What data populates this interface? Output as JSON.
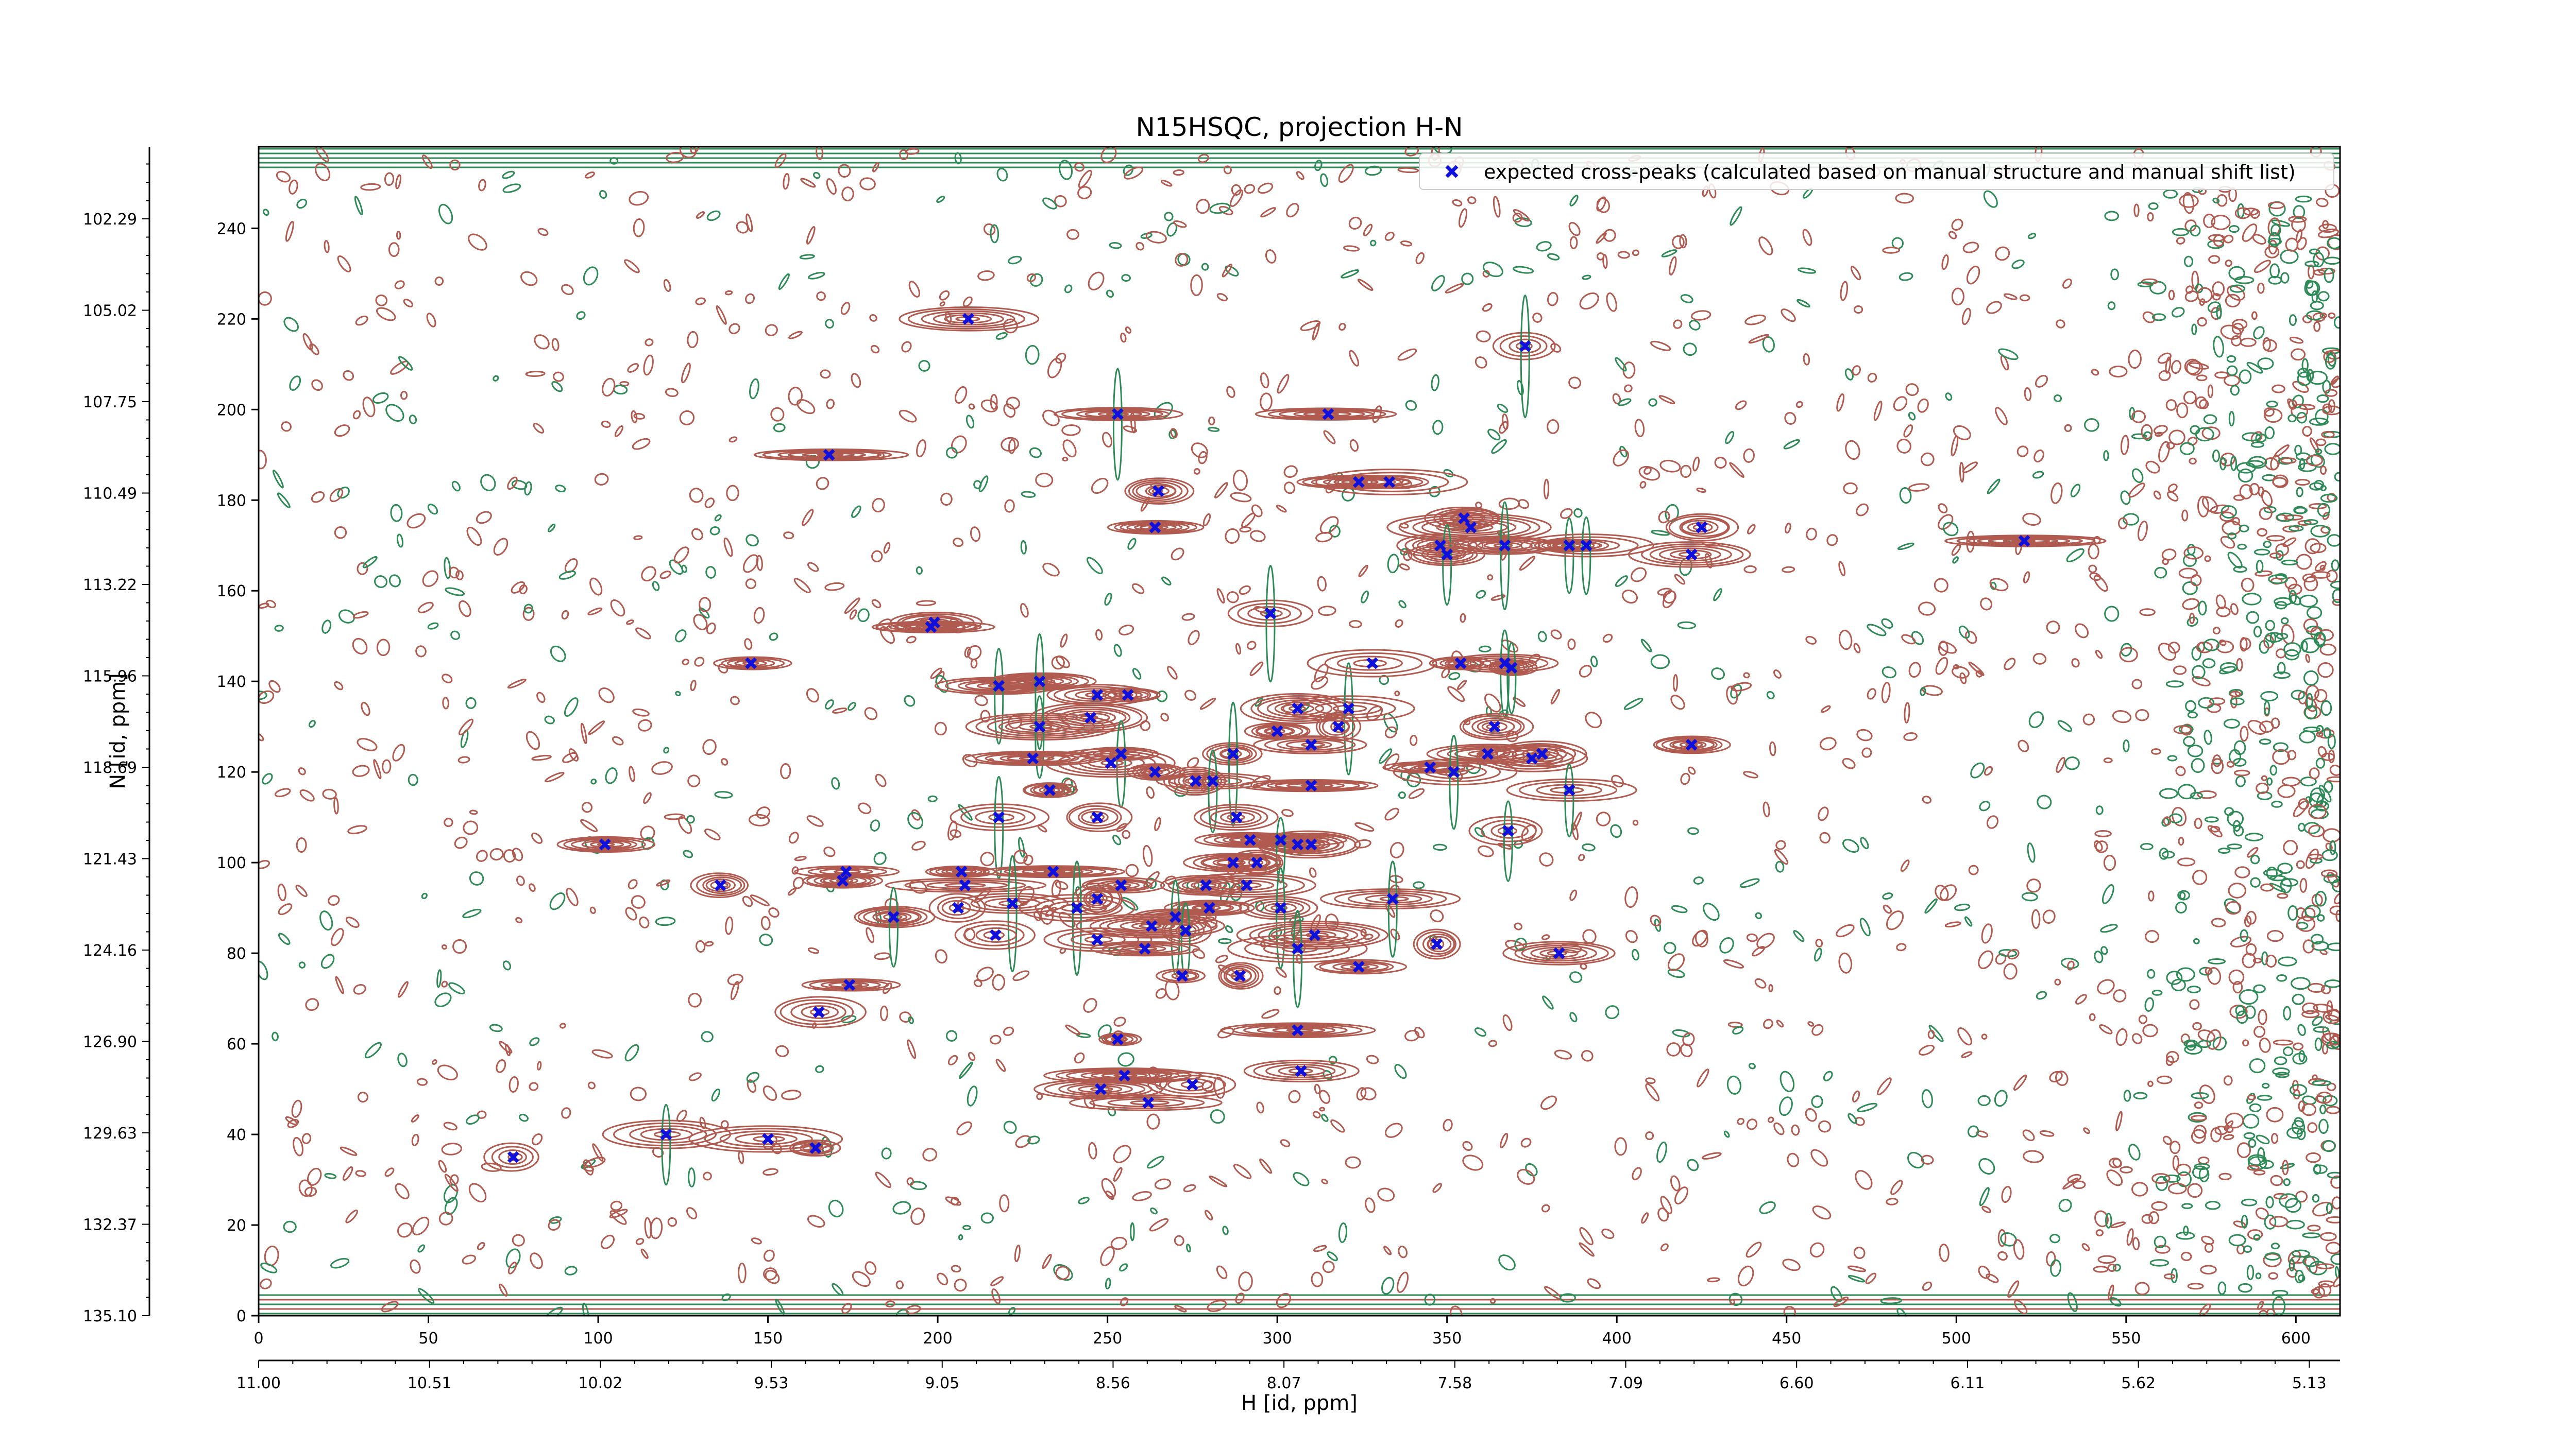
{
  "chart_data": {
    "type": "scatter",
    "title": "N15HSQC, projection H-N",
    "xlabel": "H [id, ppm]",
    "ylabel": "N [id, ppm]",
    "xlim": [
      0,
      613
    ],
    "ylim": [
      0,
      258
    ],
    "index_ticks": {
      "x": [
        "0",
        "50",
        "100",
        "150",
        "200",
        "250",
        "300",
        "350",
        "400",
        "450",
        "500",
        "550",
        "600"
      ],
      "y": [
        "0",
        "20",
        "40",
        "60",
        "80",
        "100",
        "120",
        "140",
        "160",
        "180",
        "200",
        "220",
        "240"
      ]
    },
    "ppm_ticks": {
      "x": [
        "11.00",
        "10.51",
        "10.02",
        "9.53",
        "9.05",
        "8.56",
        "8.07",
        "7.58",
        "7.09",
        "6.60",
        "6.11",
        "5.62",
        "5.13"
      ],
      "y": [
        "135.10",
        "132.37",
        "129.63",
        "126.90",
        "124.16",
        "121.43",
        "118.69",
        "115.96",
        "113.22",
        "110.49",
        "107.75",
        "105.02",
        "102.29"
      ]
    },
    "legend": {
      "placement": "top-right",
      "entries": [
        {
          "label": "expected cross-peaks (calculated based on manual structure and manual shift list)",
          "marker": "x",
          "color": "#1010dd"
        }
      ]
    },
    "background": "contour map (positive and negative contour levels)",
    "colors": {
      "positive_contour": "#b05a50",
      "negative_contour": "#2e8b57",
      "marker": "#1010dd"
    },
    "series": [
      {
        "name": "expected cross-peaks (calculated based on manual structure and manual shift list)",
        "points": [
          [
            209,
            220
          ],
          [
            373,
            214
          ],
          [
            253,
            199
          ],
          [
            315,
            199
          ],
          [
            168,
            190
          ],
          [
            265,
            182
          ],
          [
            324,
            184
          ],
          [
            333,
            184
          ],
          [
            264,
            174
          ],
          [
            355,
            176
          ],
          [
            357,
            174
          ],
          [
            425,
            174
          ],
          [
            348,
            170
          ],
          [
            350,
            168
          ],
          [
            367,
            170
          ],
          [
            386,
            170
          ],
          [
            391,
            170
          ],
          [
            422,
            168
          ],
          [
            520,
            171
          ],
          [
            198,
            152
          ],
          [
            199,
            153
          ],
          [
            298,
            155
          ],
          [
            145,
            144
          ],
          [
            218,
            139
          ],
          [
            230,
            140
          ],
          [
            247,
            137
          ],
          [
            256,
            137
          ],
          [
            306,
            134
          ],
          [
            321,
            134
          ],
          [
            328,
            144
          ],
          [
            354,
            144
          ],
          [
            367,
            144
          ],
          [
            369,
            143
          ],
          [
            245,
            132
          ],
          [
            318,
            130
          ],
          [
            300,
            129
          ],
          [
            230,
            130
          ],
          [
            254,
            124
          ],
          [
            228,
            123
          ],
          [
            287,
            124
          ],
          [
            310,
            126
          ],
          [
            362,
            124
          ],
          [
            364,
            130
          ],
          [
            378,
            124
          ],
          [
            422,
            126
          ],
          [
            375,
            123
          ],
          [
            310,
            117
          ],
          [
            251,
            122
          ],
          [
            264,
            120
          ],
          [
            276,
            118
          ],
          [
            281,
            118
          ],
          [
            345,
            121
          ],
          [
            352,
            120
          ],
          [
            386,
            116
          ],
          [
            233,
            116
          ],
          [
            218,
            110
          ],
          [
            247,
            110
          ],
          [
            288,
            110
          ],
          [
            306,
            104
          ],
          [
            310,
            104
          ],
          [
            368,
            107
          ],
          [
            292,
            105
          ],
          [
            301,
            105
          ],
          [
            207,
            98
          ],
          [
            234,
            98
          ],
          [
            287,
            100
          ],
          [
            294,
            100
          ],
          [
            172,
            96
          ],
          [
            173,
            98
          ],
          [
            208,
            95
          ],
          [
            254,
            95
          ],
          [
            247,
            92
          ],
          [
            279,
            95
          ],
          [
            291,
            95
          ],
          [
            280,
            90
          ],
          [
            301,
            90
          ],
          [
            206,
            90
          ],
          [
            222,
            91
          ],
          [
            334,
            92
          ],
          [
            187,
            88
          ],
          [
            241,
            90
          ],
          [
            270,
            88
          ],
          [
            263,
            86
          ],
          [
            273,
            85
          ],
          [
            311,
            84
          ],
          [
            217,
            84
          ],
          [
            247,
            83
          ],
          [
            347,
            82
          ],
          [
            383,
            80
          ],
          [
            306,
            81
          ],
          [
            324,
            77
          ],
          [
            261,
            81
          ],
          [
            272,
            75
          ],
          [
            289,
            75
          ],
          [
            174,
            73
          ],
          [
            165,
            67
          ],
          [
            253,
            61
          ],
          [
            306,
            63
          ],
          [
            248,
            50
          ],
          [
            255,
            53
          ],
          [
            262,
            47
          ],
          [
            275,
            51
          ],
          [
            307,
            54
          ],
          [
            120,
            40
          ],
          [
            150,
            39
          ],
          [
            164,
            37
          ],
          [
            75,
            35
          ],
          [
            102,
            104
          ],
          [
            136,
            95
          ]
        ]
      }
    ]
  }
}
